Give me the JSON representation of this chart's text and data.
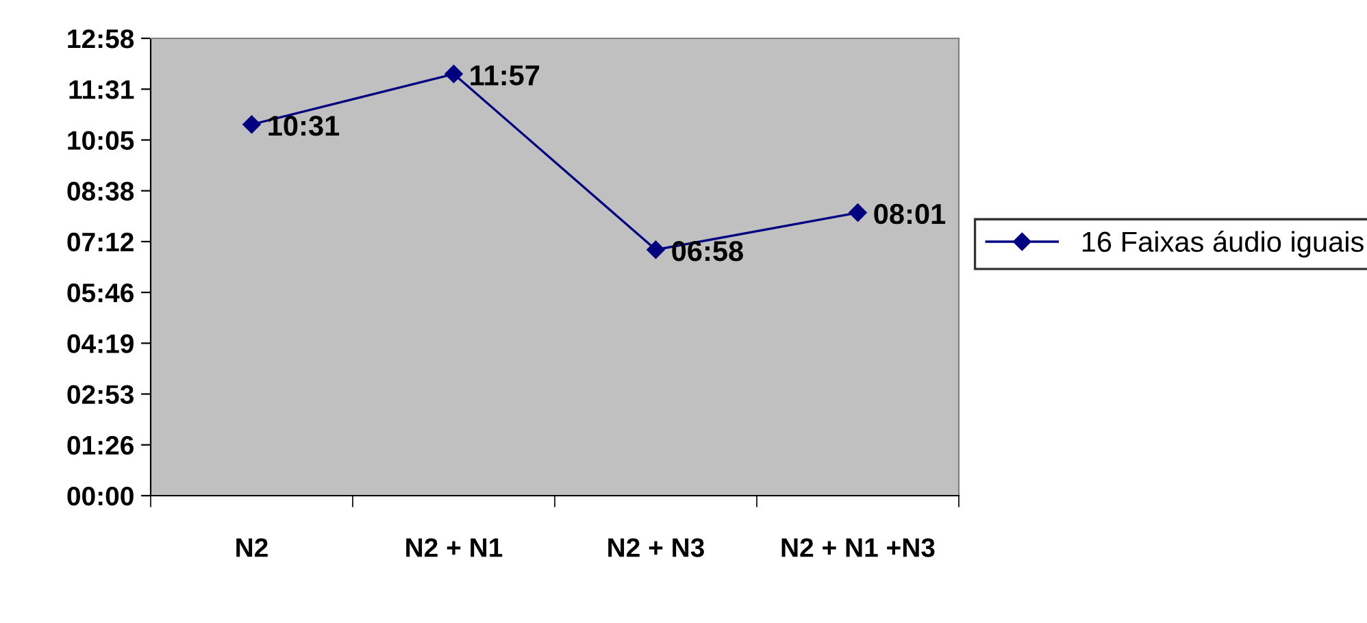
{
  "chart_data": {
    "type": "line",
    "categories": [
      "N2",
      "N2 + N1",
      "N2 + N3",
      "N2 + N1 +N3"
    ],
    "series": [
      {
        "name": "16 Faixas áudio iguais",
        "color": "#000080",
        "values": [
          10.52,
          11.95,
          6.97,
          8.02
        ],
        "value_labels": [
          "10:31",
          "11:57",
          "06:58",
          "08:01"
        ]
      }
    ],
    "ylim": [
      0,
      12.96
    ],
    "yticks": [
      {
        "value": 0,
        "label": "00:00"
      },
      {
        "value": 1.44,
        "label": "01:26"
      },
      {
        "value": 2.88,
        "label": "02:53"
      },
      {
        "value": 4.32,
        "label": "04:19"
      },
      {
        "value": 5.76,
        "label": "05:46"
      },
      {
        "value": 7.2,
        "label": "07:12"
      },
      {
        "value": 8.64,
        "label": "08:38"
      },
      {
        "value": 10.08,
        "label": "10:05"
      },
      {
        "value": 11.52,
        "label": "11:31"
      },
      {
        "value": 12.96,
        "label": "12:58"
      }
    ],
    "grid": false,
    "legend": "right",
    "marker": "diamond",
    "line_style": "solid"
  }
}
